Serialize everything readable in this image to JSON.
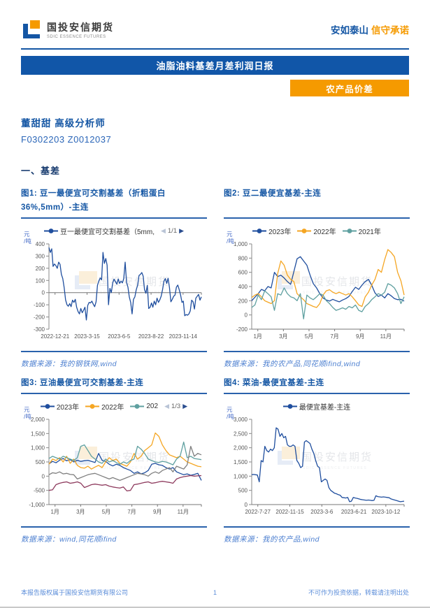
{
  "header": {
    "brand": "国投安信期货",
    "brand_sub": "SDIC ESSENCE FUTURES",
    "slogan_blue": "安如泰山",
    "slogan_orange": "信守承诺"
  },
  "banner": {
    "title": "油脂油料基差月差利润日报"
  },
  "badge": {
    "label": "农产品价差"
  },
  "analyst": {
    "name_title": "董甜甜 高级分析师",
    "codes": "F0302203 Z0012037"
  },
  "section": {
    "title": "一、基差"
  },
  "colors": {
    "primary_blue": "#1156a8",
    "accent_orange": "#f59a00",
    "line_blue": "#1f4e9e",
    "line_orange": "#f5a623",
    "line_teal": "#5fa0a0",
    "line_gray": "#7f7f7f",
    "line_maroon": "#8e3b5e"
  },
  "footer": {
    "left": "本报告版权属于国投安信期货有限公司",
    "page": "1",
    "right": "不可作为投资依据，转载请注明出处"
  },
  "chart_data": [
    {
      "type": "line",
      "title": "图1: 豆一最便宜可交割基差（折粗蛋白36%,5mm）-主连",
      "unit": "元/吨",
      "legend_pager": "1/1",
      "ylim": [
        -300,
        400
      ],
      "y_ticks": [
        400,
        300,
        200,
        100,
        0,
        -100,
        -200,
        -300
      ],
      "comma": false,
      "x_axis_at_zero": true,
      "x_ticks": [
        "2022-12-21",
        "2023-3-15",
        "2023-6-5",
        "2023-8-22",
        "2023-11-14"
      ],
      "series": [
        {
          "name": "豆一最便宜可交割基差（5mm,",
          "color": "#1f4e9e",
          "values": [
            370,
            330,
            360,
            215,
            235,
            222,
            200,
            250,
            232,
            150,
            115,
            40,
            -60,
            -100,
            -112,
            -90,
            -115,
            -62,
            -80,
            -55,
            -120,
            -155,
            -175,
            -130,
            -165,
            -145,
            -120,
            -225,
            -105,
            -80,
            -85,
            -70,
            -95,
            -115,
            -75,
            60,
            95,
            120,
            105,
            330,
            240,
            280,
            225,
            -100,
            35,
            0,
            80,
            110,
            90,
            70,
            112,
            75,
            95,
            80,
            115,
            250,
            85,
            45,
            -35,
            -80,
            -175,
            -55,
            -35,
            25,
            60,
            140,
            150,
            165,
            135,
            25,
            -5,
            60,
            -130,
            -120,
            -85,
            -120,
            -70,
            -100,
            -45,
            -80,
            -60,
            -30,
            25,
            95,
            115,
            75,
            118,
            40,
            -75,
            -55,
            -30,
            -20,
            45,
            62,
            25,
            -20,
            -80,
            -70,
            -190,
            -180,
            -185,
            -175,
            -150,
            -62,
            -75,
            -135,
            -45,
            -30,
            -15,
            -62,
            -35
          ]
        }
      ],
      "source": "数据来源：我的钢铁网,wind"
    },
    {
      "type": "line",
      "title": "图2: 豆二最便宜基差-主连",
      "unit": "元/吨",
      "ylim": [
        -200,
        1000
      ],
      "y_ticks": [
        1000,
        800,
        600,
        400,
        200,
        0,
        -200
      ],
      "comma": true,
      "x_axis_at_zero": false,
      "x_ticks": [
        "1月",
        "3月",
        "5月",
        "7月",
        "9月",
        "11月"
      ],
      "series": [
        {
          "name": "2023年",
          "color": "#1f4e9e",
          "values": [
            200,
            250,
            300,
            360,
            340,
            400,
            380,
            600,
            540,
            560,
            520,
            470,
            430,
            610,
            790,
            820,
            760,
            700,
            560,
            440,
            380,
            300,
            240,
            210,
            195,
            220,
            200,
            185,
            210,
            230,
            260,
            330,
            390,
            360,
            420,
            470,
            500,
            420,
            310,
            260,
            280,
            240,
            300,
            270,
            230,
            215,
            220,
            195
          ]
        },
        {
          "name": "2022年",
          "color": "#f5a623",
          "values": [
            245,
            280,
            300,
            255,
            200,
            180,
            160,
            200,
            580,
            760,
            700,
            560,
            500,
            470,
            300,
            255,
            215,
            160,
            140,
            120,
            105,
            160,
            280,
            340,
            355,
            320,
            300,
            320,
            300,
            280,
            300,
            255,
            200,
            140,
            120,
            255,
            320,
            420,
            500,
            640,
            600,
            780,
            920,
            880,
            820,
            600,
            480,
            280
          ]
        },
        {
          "name": "2021年",
          "color": "#5fa0a0",
          "values": [
            105,
            140,
            280,
            215,
            340,
            300,
            255,
            65,
            300,
            280,
            380,
            300,
            255,
            240,
            200,
            300,
            -55,
            280,
            240,
            215,
            255,
            300,
            280,
            200,
            160,
            105,
            65,
            80,
            100,
            80,
            120,
            100,
            140,
            65,
            45,
            120,
            160,
            215,
            255,
            300,
            280,
            320,
            440,
            420,
            380,
            300,
            160,
            255
          ]
        }
      ],
      "source": "数据来源：我的农产品,同花顺ifind,wind"
    },
    {
      "type": "line",
      "title": "图3: 豆油最便宜可交割基差-主连",
      "unit": "元/吨",
      "legend_pager": "1/3",
      "legend_max": 3,
      "ylim": [
        -1000,
        2000
      ],
      "y_ticks": [
        2000,
        1500,
        1000,
        500,
        0,
        -500,
        -1000
      ],
      "comma": true,
      "x_axis_at_zero": false,
      "x_ticks": [
        "1月",
        "3月",
        "5月",
        "7月",
        "9月",
        "11月"
      ],
      "series": [
        {
          "name": "2023年",
          "color": "#1f4e9e",
          "values": [
            430,
            520,
            470,
            560,
            620,
            540,
            580,
            500,
            560,
            520,
            545,
            560,
            520,
            480,
            800,
            560,
            520,
            420,
            360,
            420,
            380,
            300,
            250,
            200,
            100,
            150,
            80,
            120,
            200,
            420,
            450,
            400,
            380,
            300,
            250,
            300,
            150,
            100,
            50,
            80,
            30,
            60,
            100,
            -150
          ]
        },
        {
          "name": "2022年",
          "color": "#f5a623",
          "values": [
            420,
            600,
            550,
            650,
            500,
            700,
            450,
            600,
            380,
            300,
            280,
            350,
            250,
            320,
            380,
            300,
            500,
            650,
            550,
            600,
            450,
            400,
            350,
            500,
            800,
            600,
            700,
            900,
            1000,
            1100,
            1520,
            1400,
            1100,
            900,
            750,
            700,
            650,
            700,
            600,
            500,
            450,
            400,
            350,
            330
          ]
        },
        {
          "name": "202",
          "color": "#5fa0a0",
          "values": [
            620,
            700,
            650,
            600,
            700,
            650,
            600,
            550,
            650,
            1050,
            1100,
            900,
            700,
            600,
            500,
            450,
            600,
            500,
            550,
            480,
            420,
            500,
            450,
            550,
            600,
            1050,
            950,
            800,
            600,
            550,
            500,
            480,
            520,
            500,
            450,
            400,
            600,
            700,
            1200,
            650,
            700,
            620,
            600,
            580
          ]
        },
        {
          "name": "",
          "color": "#7f7f7f",
          "values": [
            50,
            120,
            100,
            150,
            80,
            100,
            60,
            50,
            -100,
            -50,
            0,
            50,
            80,
            100,
            50,
            0,
            -50,
            -100,
            -50,
            -100,
            -150,
            -100,
            -50,
            0,
            50,
            100,
            80,
            50,
            0,
            100,
            150,
            100,
            200,
            250,
            300,
            150,
            350,
            300,
            250,
            400,
            1050,
            700,
            800,
            750
          ]
        },
        {
          "name": "",
          "color": "#8e3b5e",
          "values": [
            -500,
            -480,
            -300,
            -250,
            -220,
            -200,
            -250,
            -230,
            -200,
            -250,
            -400,
            -350,
            -300,
            -280,
            -300,
            -320,
            -300,
            -350,
            -380,
            -400,
            -420,
            -380,
            -520,
            -500,
            -300,
            -280,
            -250,
            -220,
            -200,
            -250,
            -230,
            -200,
            -180,
            -200,
            -220,
            -250,
            -100,
            -50,
            -20,
            0,
            20,
            0,
            10,
            20
          ]
        }
      ],
      "source": "数据来源：wind,同花顺ifind"
    },
    {
      "type": "line",
      "title": "图4: 菜油-最便宜基差-主连",
      "unit": "元/吨",
      "ylim": [
        0,
        3000
      ],
      "y_ticks": [
        3000,
        2500,
        2000,
        1500,
        1000,
        500,
        0
      ],
      "comma": true,
      "x_axis_at_zero": false,
      "x_ticks": [
        "2022-7-27",
        "2022-11-15",
        "2023-3-6",
        "2023-6-21",
        "2023-10-12"
      ],
      "series": [
        {
          "name": "最便宜基差-主连",
          "color": "#1f4e9e",
          "values": [
            1050,
            1060,
            1050,
            1040,
            800,
            1550,
            1500,
            2050,
            1900,
            1850,
            1950,
            1900,
            2000,
            2700,
            2650,
            2400,
            2500,
            2350,
            2400,
            2100,
            2050,
            2050,
            2100,
            2050,
            1550,
            1450,
            1300,
            1350,
            2200,
            2250,
            2200,
            2150,
            1950,
            1800,
            1550,
            1350,
            1300,
            800,
            850,
            900,
            850,
            600,
            500,
            450,
            400,
            380,
            350,
            330,
            250,
            240,
            230,
            250,
            100,
            120,
            250,
            230,
            220,
            200,
            180,
            170,
            160,
            150,
            160,
            150,
            140,
            150,
            310,
            280,
            270,
            260,
            270,
            260,
            250,
            240,
            200,
            180,
            160,
            140,
            120,
            100,
            110,
            120
          ]
        }
      ],
      "source": "数据来源：我的农产品,wind"
    }
  ]
}
